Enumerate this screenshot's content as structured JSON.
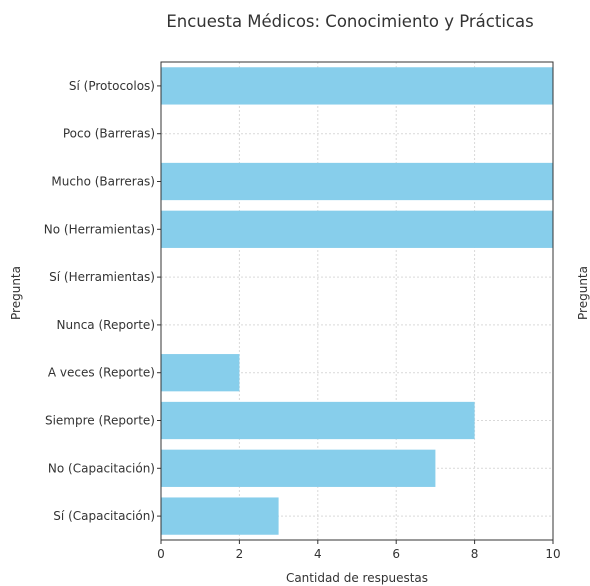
{
  "chart_data": {
    "type": "bar",
    "orientation": "horizontal",
    "title": "Encuesta Médicos: Conocimiento y Prácticas",
    "xlabel": "Cantidad de respuestas",
    "ylabel": "Pregunta",
    "ylabel_right": "Pregunta",
    "categories": [
      "Sí (Capacitación)",
      "No (Capacitación)",
      "Siempre (Reporte)",
      "A veces (Reporte)",
      "Nunca (Reporte)",
      "Sí (Herramientas)",
      "No (Herramientas)",
      "Mucho (Barreras)",
      "Poco (Barreras)",
      "Sí (Protocolos)"
    ],
    "values": [
      3,
      7,
      8,
      2,
      0,
      0,
      10,
      10,
      0,
      10
    ],
    "xlim": [
      0,
      10
    ],
    "xticks": [
      "0",
      "2",
      "4",
      "6",
      "8",
      "10"
    ],
    "grid": true,
    "bar_color": "#87ceeb"
  }
}
